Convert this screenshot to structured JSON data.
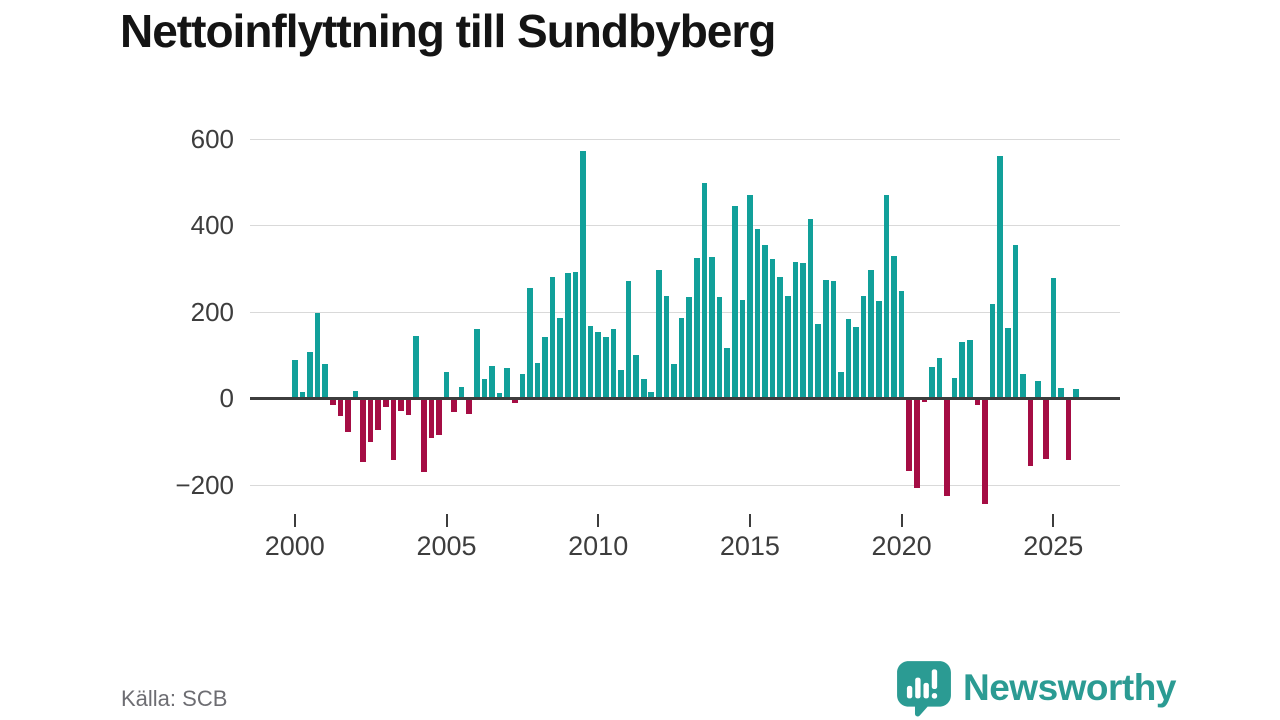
{
  "title": "Nettoinflyttning till Sundbyberg",
  "source": "Källa: SCB",
  "logo": {
    "wordmark": "Newsworthy",
    "icon": "newsworthy-bubble-chart-icon"
  },
  "brand_color": "#2b9b93",
  "chart_data": {
    "type": "bar",
    "title": "Nettoinflyttning till Sundbyberg",
    "xlabel": "",
    "ylabel": "",
    "frequency": "quarterly",
    "start_period": "2000 Q1",
    "end_period": "2025 Q4",
    "x_tick_labels": [
      "2000",
      "2005",
      "2010",
      "2015",
      "2020",
      "2025"
    ],
    "y_ticks": [
      600,
      400,
      200,
      0,
      -200
    ],
    "y_tick_labels": [
      "600",
      "400",
      "200",
      "0",
      "−200"
    ],
    "ylim": [
      -260,
      660
    ],
    "grid": "horizontal",
    "legend": "none",
    "colors": {
      "positive": "#11a09a",
      "negative": "#a50d44"
    },
    "values": [
      87,
      14,
      107,
      197,
      78,
      -12,
      -38,
      -75,
      16,
      -145,
      -98,
      -70,
      -17,
      -140,
      -26,
      -35,
      144,
      -167,
      -88,
      -81,
      59,
      -29,
      25,
      -34,
      160,
      43,
      73,
      12,
      70,
      -7,
      56,
      255,
      80,
      140,
      280,
      185,
      288,
      292,
      570,
      166,
      152,
      141,
      160,
      64,
      270,
      100,
      45,
      15,
      295,
      236,
      78,
      184,
      234,
      323,
      498,
      327,
      233,
      116,
      445,
      226,
      470,
      390,
      354,
      321,
      280,
      236,
      315,
      313,
      415,
      170,
      272,
      270,
      59,
      183,
      165,
      235,
      297,
      224,
      470,
      328,
      248,
      -166,
      -204,
      -5,
      72,
      93,
      -224,
      47,
      129,
      134,
      -13,
      -242,
      218,
      560,
      161,
      354,
      55,
      -154,
      40,
      -138,
      277,
      23,
      -141,
      21
    ]
  }
}
